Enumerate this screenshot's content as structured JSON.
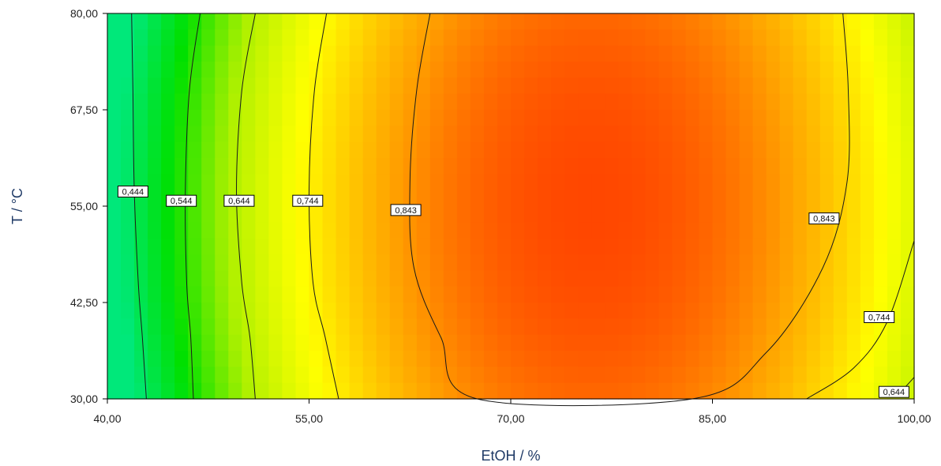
{
  "chart_data": {
    "type": "heatmap",
    "subtype": "contour",
    "title": "",
    "xlabel": "EtOH / %",
    "ylabel": "T / °C",
    "xlim": [
      40,
      100
    ],
    "ylim": [
      30,
      80
    ],
    "x_ticks": [
      40,
      55,
      70,
      85,
      100
    ],
    "y_ticks": [
      30,
      42.5,
      55,
      67.5,
      80
    ],
    "x_tick_labels": [
      "40,00",
      "55,00",
      "70,00",
      "85,00",
      "100,00"
    ],
    "y_tick_labels": [
      "30,00",
      "42,50",
      "55,00",
      "67,50",
      "80,00"
    ],
    "colormap": [
      "#00e87a",
      "#00e000",
      "#aef000",
      "#ffff00",
      "#ffa500",
      "#ff3c00"
    ],
    "colorscale_range": [
      0.41,
      0.9
    ],
    "peak": {
      "x": 76,
      "y": 55,
      "value": 0.89
    },
    "grid": false,
    "contours": [
      {
        "level": 0.444,
        "label": "0,444",
        "points": [
          [
            41.8,
            80
          ],
          [
            41.9,
            70
          ],
          [
            42.0,
            57
          ],
          [
            42.3,
            45
          ],
          [
            42.6,
            38
          ],
          [
            42.9,
            30
          ]
        ],
        "label_at": [
          41.9,
          56.9
        ]
      },
      {
        "level": 0.544,
        "label": "0,544",
        "points": [
          [
            46.9,
            80
          ],
          [
            46.1,
            70
          ],
          [
            45.8,
            57
          ],
          [
            45.9,
            45
          ],
          [
            46.2,
            38
          ],
          [
            46.4,
            30
          ]
        ],
        "label_at": [
          45.5,
          55.7
        ]
      },
      {
        "level": 0.644,
        "label": "0,644",
        "points": [
          [
            51.0,
            80
          ],
          [
            50.0,
            70
          ],
          [
            49.6,
            57
          ],
          [
            50.0,
            45
          ],
          [
            50.6,
            38
          ],
          [
            51.0,
            30
          ]
        ],
        "label_at": [
          49.8,
          55.7
        ]
      },
      {
        "level": 0.744,
        "label": "0,744",
        "points": [
          [
            56.3,
            80
          ],
          [
            55.4,
            70
          ],
          [
            55.0,
            57
          ],
          [
            55.3,
            45
          ],
          [
            56.2,
            38
          ],
          [
            57.2,
            30
          ]
        ],
        "label_at": [
          54.9,
          55.7
        ]
      },
      {
        "level": 0.843,
        "label": "0,843",
        "points": [
          [
            64.0,
            80
          ],
          [
            63.0,
            70
          ],
          [
            62.5,
            58
          ],
          [
            62.8,
            47
          ],
          [
            64.8,
            38
          ],
          [
            67.5,
            30
          ],
          [
            83.5,
            30
          ],
          [
            89.0,
            36
          ],
          [
            93.2,
            47
          ],
          [
            95.0,
            58
          ],
          [
            95.1,
            70
          ],
          [
            94.7,
            80
          ]
        ],
        "label_at": [
          62.2,
          54.5
        ]
      },
      {
        "level": 0.843,
        "label": "0,843",
        "points": [],
        "label_at": [
          93.3,
          53.4
        ]
      },
      {
        "level": 0.744,
        "label": "0,744",
        "points": [
          [
            92.0,
            30
          ],
          [
            95.5,
            34
          ],
          [
            98.0,
            40
          ],
          [
            100.0,
            50.5
          ]
        ],
        "label_at": [
          97.4,
          40.6
        ]
      },
      {
        "level": 0.644,
        "label": "0,644",
        "points": [
          [
            98.8,
            30.5
          ],
          [
            100.0,
            32.8
          ]
        ],
        "label_at": [
          98.5,
          30.9
        ]
      }
    ]
  }
}
